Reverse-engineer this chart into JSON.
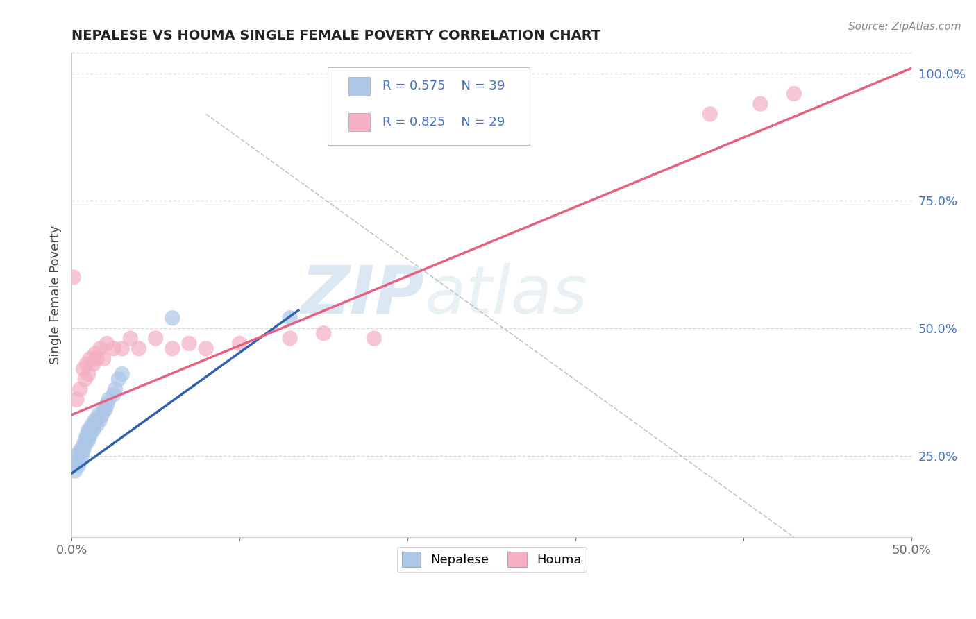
{
  "title": "NEPALESE VS HOUMA SINGLE FEMALE POVERTY CORRELATION CHART",
  "source": "Source: ZipAtlas.com",
  "ylabel": "Single Female Poverty",
  "xlim": [
    0.0,
    0.5
  ],
  "ylim": [
    0.09,
    1.04
  ],
  "x_ticks": [
    0.0,
    0.1,
    0.2,
    0.3,
    0.4,
    0.5
  ],
  "x_tick_labels": [
    "0.0%",
    "",
    "",
    "",
    "",
    "50.0%"
  ],
  "y_ticks": [
    0.25,
    0.5,
    0.75,
    1.0
  ],
  "y_tick_labels": [
    "25.0%",
    "50.0%",
    "75.0%",
    "100.0%"
  ],
  "nepalese_R": 0.575,
  "nepalese_N": 39,
  "houma_R": 0.825,
  "houma_N": 29,
  "nepalese_color": "#adc6e8",
  "houma_color": "#f4afc2",
  "nepalese_line_color": "#3060b0",
  "houma_line_color": "#e86080",
  "nepalese_x": [
    0.002,
    0.003,
    0.003,
    0.004,
    0.005,
    0.005,
    0.006,
    0.006,
    0.007,
    0.007,
    0.008,
    0.008,
    0.009,
    0.009,
    0.01,
    0.01,
    0.01,
    0.011,
    0.011,
    0.012,
    0.012,
    0.013,
    0.013,
    0.014,
    0.015,
    0.015,
    0.016,
    0.017,
    0.018,
    0.019,
    0.02,
    0.021,
    0.022,
    0.025,
    0.026,
    0.028,
    0.03,
    0.06,
    0.13
  ],
  "nepalese_y": [
    0.22,
    0.24,
    0.25,
    0.23,
    0.24,
    0.26,
    0.25,
    0.26,
    0.26,
    0.27,
    0.27,
    0.28,
    0.28,
    0.29,
    0.28,
    0.29,
    0.3,
    0.29,
    0.3,
    0.3,
    0.31,
    0.3,
    0.31,
    0.32,
    0.31,
    0.32,
    0.33,
    0.32,
    0.33,
    0.34,
    0.34,
    0.35,
    0.36,
    0.37,
    0.38,
    0.4,
    0.41,
    0.52,
    0.52
  ],
  "houma_x": [
    0.001,
    0.003,
    0.005,
    0.007,
    0.008,
    0.009,
    0.01,
    0.011,
    0.013,
    0.014,
    0.015,
    0.017,
    0.019,
    0.021,
    0.025,
    0.03,
    0.035,
    0.04,
    0.05,
    0.06,
    0.07,
    0.08,
    0.1,
    0.13,
    0.15,
    0.18,
    0.38,
    0.41,
    0.43
  ],
  "houma_y": [
    0.6,
    0.36,
    0.38,
    0.42,
    0.4,
    0.43,
    0.41,
    0.44,
    0.43,
    0.45,
    0.44,
    0.46,
    0.44,
    0.47,
    0.46,
    0.46,
    0.48,
    0.46,
    0.48,
    0.46,
    0.47,
    0.46,
    0.47,
    0.48,
    0.49,
    0.48,
    0.92,
    0.94,
    0.96
  ],
  "nepalese_line_x": [
    0.0,
    0.135
  ],
  "nepalese_line_y": [
    0.215,
    0.535
  ],
  "houma_line_x": [
    0.0,
    0.5
  ],
  "houma_line_y": [
    0.33,
    1.01
  ],
  "dash_line_x": [
    0.08,
    0.43
  ],
  "dash_line_y": [
    0.92,
    0.09
  ],
  "watermark_zip": "ZIP",
  "watermark_atlas": "atlas",
  "background_color": "#ffffff",
  "grid_color": "#cccccc"
}
